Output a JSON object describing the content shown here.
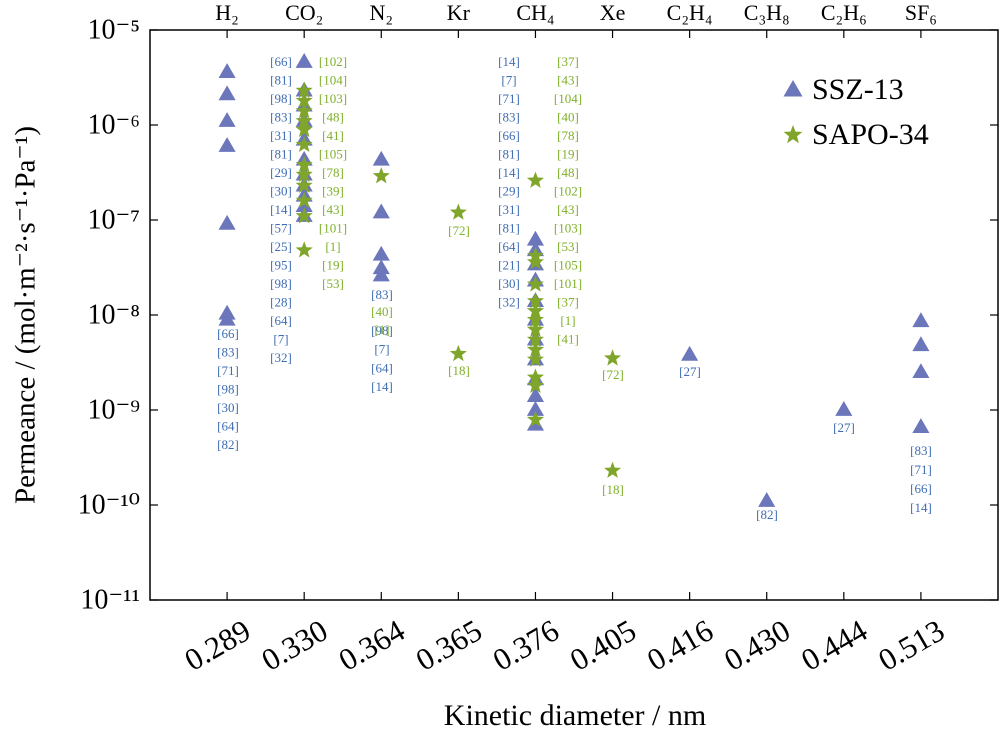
{
  "chart_data": {
    "type": "scatter",
    "x_label": "Kinetic diameter / nm",
    "y_label": "Permeance / (mol·m⁻²·s⁻¹·Pa⁻¹)",
    "categories": [
      "0.289",
      "0.330",
      "0.364",
      "0.365",
      "0.376",
      "0.405",
      "0.416",
      "0.430",
      "0.444",
      "0.513"
    ],
    "top_labels": [
      "H₂",
      "CO₂",
      "N₂",
      "Kr",
      "CH₄",
      "Xe",
      "C₂H₄",
      "C₃H₈",
      "C₂H₆",
      "SF₆"
    ],
    "log_y": true,
    "ylim": [
      1e-11,
      1e-05
    ],
    "yticks": [
      {
        "value": 1e-11,
        "label": "10⁻¹¹"
      },
      {
        "value": 1e-10,
        "label": "10⁻¹⁰"
      },
      {
        "value": 1e-09,
        "label": "10⁻⁹"
      },
      {
        "value": 1e-08,
        "label": "10⁻⁸"
      },
      {
        "value": 1e-07,
        "label": "10⁻⁷"
      },
      {
        "value": 1e-06,
        "label": "10⁻⁶"
      },
      {
        "value": 1e-05,
        "label": "10⁻⁵"
      }
    ],
    "legend": "upper right",
    "series": [
      {
        "name": "SSZ-13",
        "color": "#6b76bb",
        "marker": "triangle",
        "ref_color": "#3f6db3",
        "x": [
          "0.289",
          "0.289",
          "0.289",
          "0.289",
          "0.289",
          "0.289",
          "0.289",
          "0.330",
          "0.330",
          "0.330",
          "0.330",
          "0.330",
          "0.330",
          "0.330",
          "0.330",
          "0.330",
          "0.330",
          "0.330",
          "0.364",
          "0.364",
          "0.364",
          "0.364",
          "0.364",
          "0.376",
          "0.376",
          "0.376",
          "0.376",
          "0.376",
          "0.376",
          "0.376",
          "0.376",
          "0.376",
          "0.376",
          "0.376",
          "0.376",
          "0.416",
          "0.430",
          "0.444",
          "0.513",
          "0.513",
          "0.513",
          "0.513"
        ],
        "values": [
          3.6e-06,
          2.1e-06,
          1.1e-06,
          6e-07,
          9.1e-08,
          1.03e-08,
          8.9e-09,
          4.6e-06,
          2.3e-06,
          1.6e-06,
          1.1e-06,
          7e-07,
          4.3e-07,
          3e-07,
          2.3e-07,
          1.8e-07,
          1.4e-07,
          1.1e-07,
          4.3e-07,
          1.2e-07,
          4.3e-08,
          3.1e-08,
          2.6e-08,
          6.2e-08,
          4.8e-08,
          3.4e-08,
          2.3e-08,
          1.4e-08,
          8.9e-09,
          5.5e-09,
          3.4e-09,
          2.1e-09,
          1.4e-09,
          1e-09,
          7e-10,
          3.8e-09,
          1.1e-10,
          1e-09,
          8.6e-09,
          4.8e-09,
          2.5e-09,
          6.6e-10
        ],
        "refs": [
          [
            "[66]",
            "[83]",
            "[71]",
            "[98]",
            "[30]",
            "[64]",
            "[82]"
          ],
          [
            "[66]",
            "[81]",
            "[98]",
            "[83]",
            "[31]",
            "[81]",
            "[29]",
            "[30]",
            "[14]",
            "[57]",
            "[25]",
            "[95]",
            "[98]",
            "[28]",
            "[64]",
            "[7]",
            "[32]"
          ],
          [
            "[83]"
          ],
          [
            "[98]",
            "[7]",
            "[64]",
            "[14]"
          ],
          [
            "[14]",
            "[7]",
            "[71]",
            "[83]",
            "[66]",
            "[81]",
            "[14]",
            "[29]",
            "[31]",
            "[81]",
            "[64]",
            "[21]",
            "[30]",
            "[32]"
          ],
          [
            "[27]"
          ],
          [
            "[82]"
          ],
          [
            "[27]"
          ],
          [
            "[83]",
            "[71]",
            "[66]",
            "[14]"
          ]
        ]
      },
      {
        "name": "SAPO-34",
        "color": "#7fa52a",
        "marker": "star",
        "ref_color": "#7fb02a",
        "x": [
          "0.330",
          "0.330",
          "0.330",
          "0.330",
          "0.330",
          "0.330",
          "0.330",
          "0.330",
          "0.330",
          "0.330",
          "0.330",
          "0.330",
          "0.364",
          "0.365",
          "0.365",
          "0.376",
          "0.376",
          "0.376",
          "0.376",
          "0.376",
          "0.376",
          "0.376",
          "0.376",
          "0.376",
          "0.376",
          "0.376",
          "0.376",
          "0.376",
          "0.376",
          "0.405",
          "0.405"
        ],
        "values": [
          2.3e-06,
          1.8e-06,
          1.4e-06,
          1.1e-06,
          8.9e-07,
          6.2e-07,
          3.8e-07,
          3e-07,
          2.3e-07,
          1.6e-07,
          1.1e-07,
          4.8e-08,
          2.9e-07,
          1.2e-07,
          3.9e-09,
          2.6e-07,
          4.2e-08,
          3.6e-08,
          2.1e-08,
          1.4e-08,
          1.1e-08,
          8.9e-09,
          7e-09,
          5.5e-09,
          4.3e-09,
          3.4e-09,
          2.2e-09,
          1.8e-09,
          7.9e-10,
          3.5e-09,
          2.3e-10
        ],
        "refs": [
          [
            "[102]",
            "[104]",
            "[103]",
            "[48]",
            "[41]",
            "[105]",
            "[78]",
            "[39]",
            "[43]",
            "[101]",
            "[1]",
            "[19]",
            "[53]"
          ],
          [
            "[40]",
            "[1]"
          ],
          [
            "[72]"
          ],
          [
            "[18]"
          ],
          [
            "[37]",
            "[43]",
            "[104]",
            "[40]",
            "[78]",
            "[19]",
            "[48]",
            "[102]",
            "[43]",
            "[103]",
            "[53]",
            "[105]",
            "[101]",
            "[37]",
            "[1]",
            "[41]"
          ],
          [
            "[72]"
          ],
          [
            "[18]"
          ]
        ]
      }
    ]
  }
}
